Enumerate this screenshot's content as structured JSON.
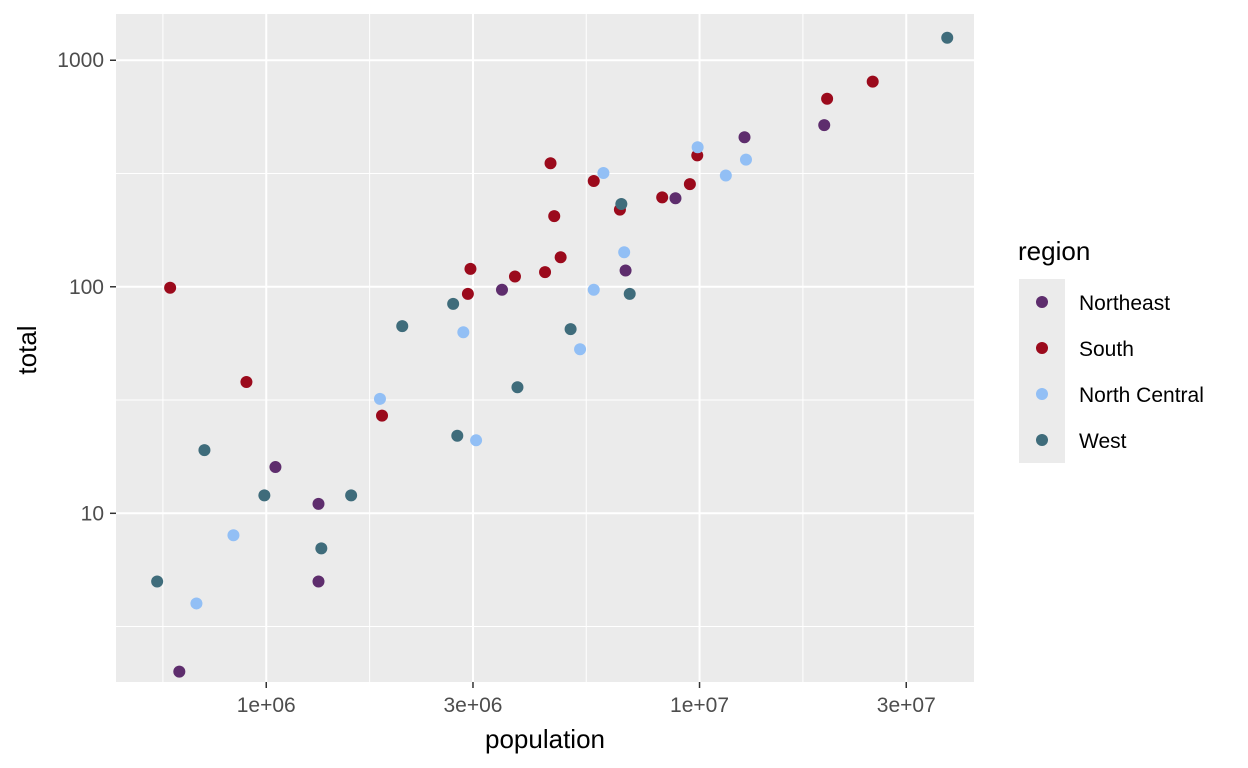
{
  "chart_data": {
    "type": "scatter",
    "title": "",
    "xlabel": "population",
    "ylabel": "total",
    "x_scale": "log10",
    "y_scale": "log10",
    "xlim": [
      450000,
      43000000
    ],
    "ylim": [
      1.8,
      1600
    ],
    "x_ticks": [
      {
        "value": 1000000,
        "label": "1e+06"
      },
      {
        "value": 3000000,
        "label": "3e+06"
      },
      {
        "value": 10000000,
        "label": "1e+07"
      },
      {
        "value": 30000000,
        "label": "3e+07"
      }
    ],
    "y_ticks": [
      {
        "value": 10,
        "label": "10"
      },
      {
        "value": 100,
        "label": "100"
      },
      {
        "value": 1000,
        "label": "1000"
      }
    ],
    "grid": true,
    "legend": {
      "title": "region",
      "position": "right"
    },
    "series": [
      {
        "name": "Northeast",
        "color": "#5e2d6d",
        "points": [
          [
            630000,
            2
          ],
          [
            1050000,
            16
          ],
          [
            1320000,
            11
          ],
          [
            1320000,
            5
          ],
          [
            3500000,
            97
          ],
          [
            6750000,
            118
          ],
          [
            8800000,
            246
          ],
          [
            12700000,
            457
          ],
          [
            19400000,
            517
          ]
        ]
      },
      {
        "name": "South",
        "color": "#9b0a1c",
        "points": [
          [
            600000,
            99
          ],
          [
            900000,
            38
          ],
          [
            1850000,
            27
          ],
          [
            2920000,
            93
          ],
          [
            2960000,
            120
          ],
          [
            3750000,
            111
          ],
          [
            4400000,
            116
          ],
          [
            4530000,
            351
          ],
          [
            4620000,
            205
          ],
          [
            4780000,
            135
          ],
          [
            5700000,
            293
          ],
          [
            6550000,
            219
          ],
          [
            8200000,
            248
          ],
          [
            9500000,
            284
          ],
          [
            9880000,
            380
          ],
          [
            19700000,
            676
          ],
          [
            25100000,
            805
          ]
        ]
      },
      {
        "name": "North Central",
        "color": "#92bff5",
        "points": [
          [
            690000,
            4
          ],
          [
            840000,
            8
          ],
          [
            1830000,
            32
          ],
          [
            2850000,
            63
          ],
          [
            3050000,
            21
          ],
          [
            5300000,
            53
          ],
          [
            5700000,
            97
          ],
          [
            6000000,
            318
          ],
          [
            6700000,
            142
          ],
          [
            9900000,
            413
          ],
          [
            11500000,
            310
          ],
          [
            12800000,
            364
          ]
        ]
      },
      {
        "name": "West",
        "color": "#3f6c7b",
        "points": [
          [
            560000,
            5
          ],
          [
            720000,
            19
          ],
          [
            990000,
            12
          ],
          [
            1340000,
            7
          ],
          [
            1570000,
            12
          ],
          [
            2060000,
            67
          ],
          [
            2700000,
            84
          ],
          [
            2760000,
            22
          ],
          [
            3800000,
            36
          ],
          [
            5040000,
            65
          ],
          [
            6600000,
            232
          ],
          [
            6900000,
            93
          ],
          [
            37300000,
            1257
          ]
        ]
      }
    ]
  }
}
